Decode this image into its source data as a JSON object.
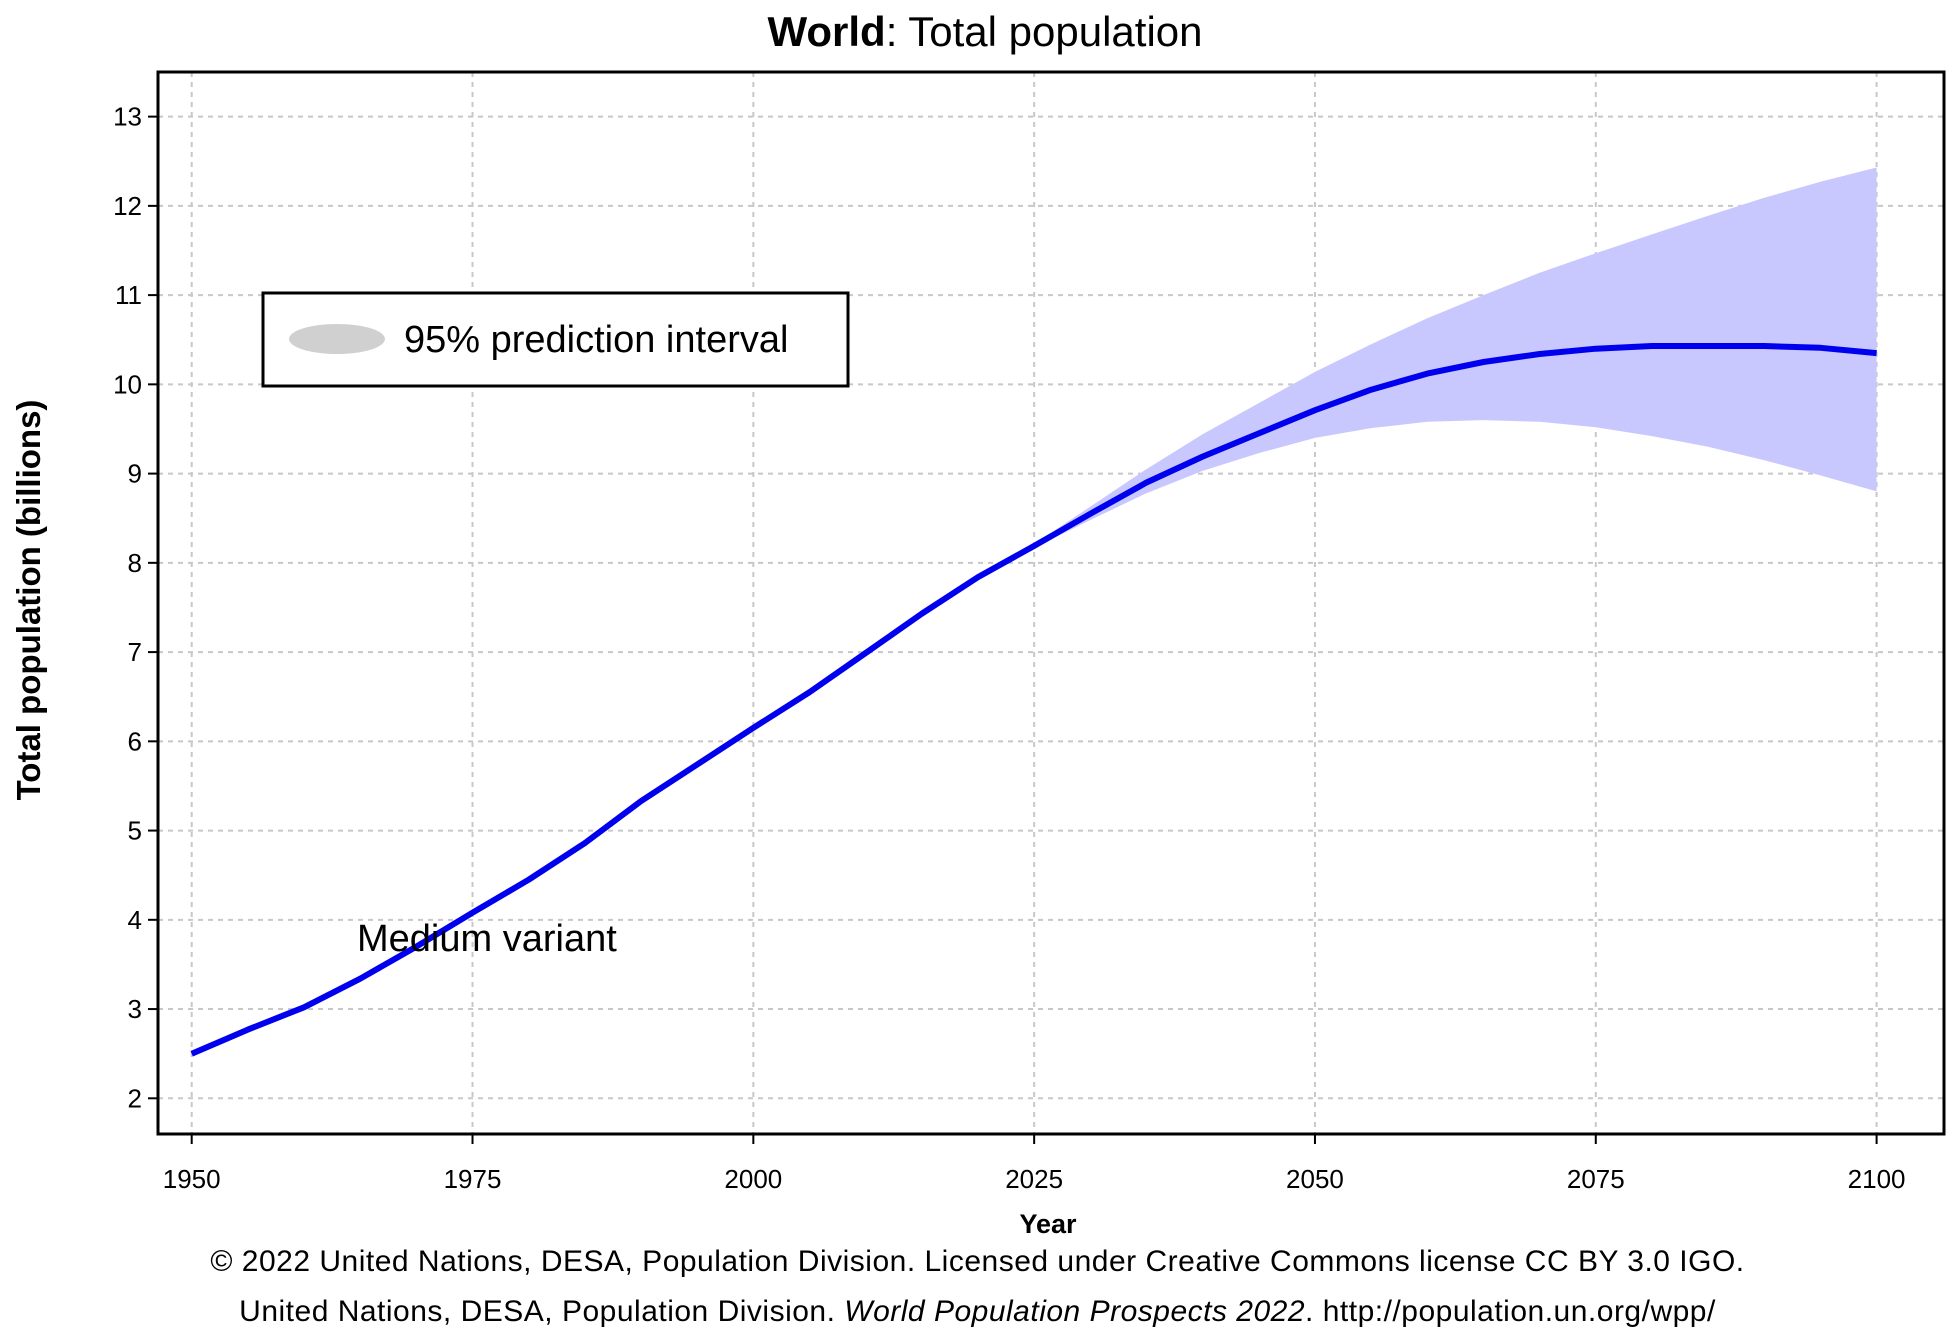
{
  "chart_data": {
    "type": "line",
    "title_bold": "World",
    "title_rest": ": Total population",
    "xlabel": "Year",
    "ylabel": "Total population (billions)",
    "xlim": [
      1947,
      2106
    ],
    "ylim": [
      1.6,
      13.5
    ],
    "xticks": [
      1950,
      1975,
      2000,
      2025,
      2050,
      2075,
      2100
    ],
    "yticks": [
      2,
      3,
      4,
      5,
      6,
      7,
      8,
      9,
      10,
      11,
      12,
      13
    ],
    "grid": true,
    "legend": {
      "label": "95% prediction interval",
      "position": "top-left"
    },
    "annotation": "Medium variant",
    "series": [
      {
        "name": "Medium variant",
        "color": "#0000ee",
        "x": [
          1950,
          1955,
          1960,
          1965,
          1970,
          1975,
          1980,
          1985,
          1990,
          1995,
          2000,
          2005,
          2010,
          2015,
          2020,
          2025,
          2030,
          2035,
          2040,
          2045,
          2050,
          2055,
          2060,
          2065,
          2070,
          2075,
          2080,
          2085,
          2090,
          2095,
          2100
        ],
        "y": [
          2.5,
          2.77,
          3.02,
          3.34,
          3.7,
          4.08,
          4.45,
          4.86,
          5.33,
          5.74,
          6.15,
          6.55,
          6.99,
          7.43,
          7.84,
          8.19,
          8.55,
          8.9,
          9.19,
          9.45,
          9.71,
          9.94,
          10.12,
          10.25,
          10.34,
          10.4,
          10.43,
          10.43,
          10.43,
          10.41,
          10.35
        ]
      }
    ],
    "interval": {
      "name": "95% prediction interval",
      "color": "#c8c8ff",
      "x": [
        2023,
        2025,
        2030,
        2035,
        2040,
        2045,
        2050,
        2055,
        2060,
        2065,
        2070,
        2075,
        2080,
        2085,
        2090,
        2095,
        2100
      ],
      "lower": [
        8.05,
        8.17,
        8.48,
        8.78,
        9.03,
        9.23,
        9.4,
        9.51,
        9.58,
        9.6,
        9.58,
        9.52,
        9.42,
        9.3,
        9.15,
        8.98,
        8.8
      ],
      "upper": [
        8.05,
        8.21,
        8.63,
        9.05,
        9.44,
        9.79,
        10.14,
        10.45,
        10.74,
        11.0,
        11.25,
        11.47,
        11.68,
        11.89,
        12.09,
        12.27,
        12.43
      ]
    }
  },
  "footer": {
    "line1": "© 2022 United Nations, DESA, Population Division. Licensed under Creative Commons license CC BY 3.0 IGO.",
    "line2_a": "United Nations, DESA, Population Division. ",
    "line2_italic": "World Population Prospects 2022",
    "line2_b": ". http://population.un.org/wpp/"
  }
}
